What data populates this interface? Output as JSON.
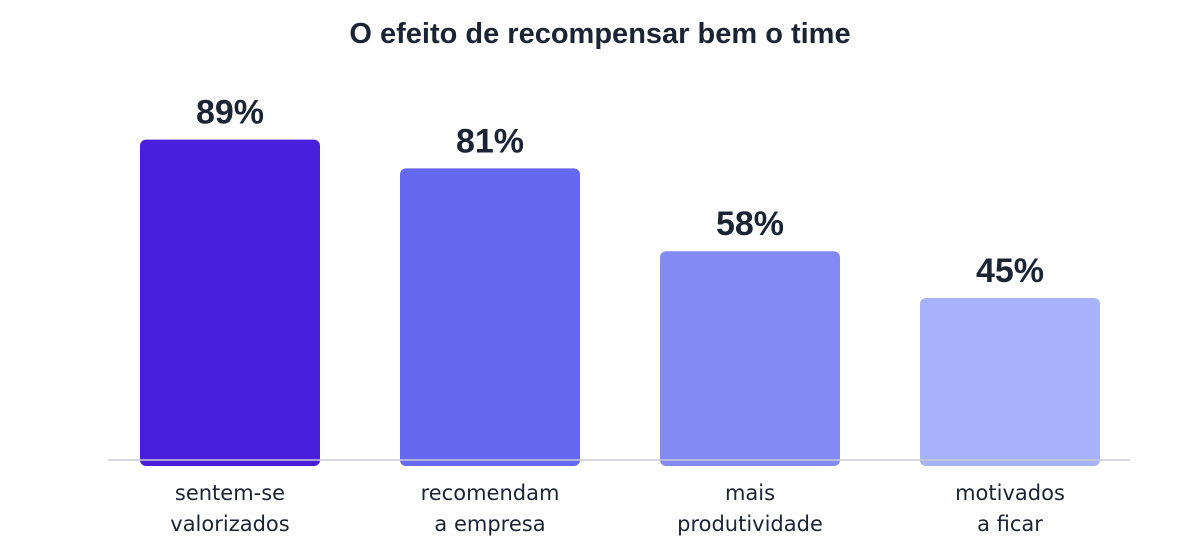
{
  "chart_data": {
    "type": "bar",
    "title": "O efeito de recompensar bem o time",
    "xlabel": "",
    "ylabel": "",
    "ylim": [
      0,
      100
    ],
    "grid": false,
    "legend": "none",
    "unit": "%",
    "categories": [
      [
        "sentem-se",
        "valorizados"
      ],
      [
        "recomendam",
        "a empresa"
      ],
      [
        "mais",
        "produtividade"
      ],
      [
        "motivados",
        "a ficar"
      ]
    ],
    "values": [
      89,
      81,
      58,
      45
    ],
    "value_labels": [
      "89%",
      "81%",
      "58%",
      "45%"
    ],
    "colors": [
      "#4a1fdc",
      "#6568f1",
      "#838af6",
      "#a7b2fb"
    ],
    "axis_color": "#c9ccd3",
    "text_color": "#1c2434"
  }
}
